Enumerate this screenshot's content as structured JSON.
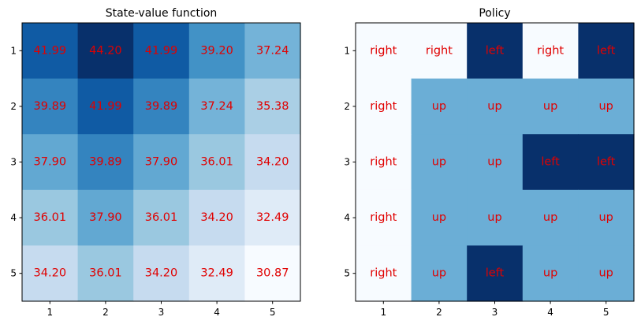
{
  "chart_data": [
    {
      "type": "heatmap",
      "title": "State-value function",
      "xlabel": "",
      "ylabel": "",
      "x_ticks": [
        "1",
        "2",
        "3",
        "4",
        "5"
      ],
      "y_ticks": [
        "1",
        "2",
        "3",
        "4",
        "5"
      ],
      "values": [
        [
          41.99,
          44.2,
          41.99,
          39.2,
          37.24
        ],
        [
          39.89,
          41.99,
          39.89,
          37.24,
          35.38
        ],
        [
          37.9,
          39.89,
          37.9,
          36.01,
          34.2
        ],
        [
          36.01,
          37.9,
          36.01,
          34.2,
          32.49
        ],
        [
          34.2,
          36.01,
          34.2,
          32.49,
          30.87
        ]
      ],
      "labels": [
        [
          "41.99",
          "44.20",
          "41.99",
          "39.20",
          "37.24"
        ],
        [
          "39.89",
          "41.99",
          "39.89",
          "37.24",
          "35.38"
        ],
        [
          "37.90",
          "39.89",
          "37.90",
          "36.01",
          "34.20"
        ],
        [
          "36.01",
          "37.90",
          "36.01",
          "34.20",
          "32.49"
        ],
        [
          "34.20",
          "36.01",
          "34.20",
          "32.49",
          "30.87"
        ]
      ],
      "colormap": "Blues",
      "label_color": "#e00000",
      "grid": false
    },
    {
      "type": "heatmap",
      "title": "Policy",
      "xlabel": "",
      "ylabel": "",
      "x_ticks": [
        "1",
        "2",
        "3",
        "4",
        "5"
      ],
      "y_ticks": [
        "1",
        "2",
        "3",
        "4",
        "5"
      ],
      "labels": [
        [
          "right",
          "right",
          "left",
          "right",
          "left"
        ],
        [
          "right",
          "up",
          "up",
          "up",
          "up"
        ],
        [
          "right",
          "up",
          "up",
          "left",
          "left"
        ],
        [
          "right",
          "up",
          "up",
          "up",
          "up"
        ],
        [
          "right",
          "up",
          "left",
          "up",
          "up"
        ]
      ],
      "action_colors": {
        "right": "#f7fbff",
        "up": "#6baed6",
        "left": "#08306b"
      },
      "label_color": "#e00000",
      "grid": false
    }
  ]
}
